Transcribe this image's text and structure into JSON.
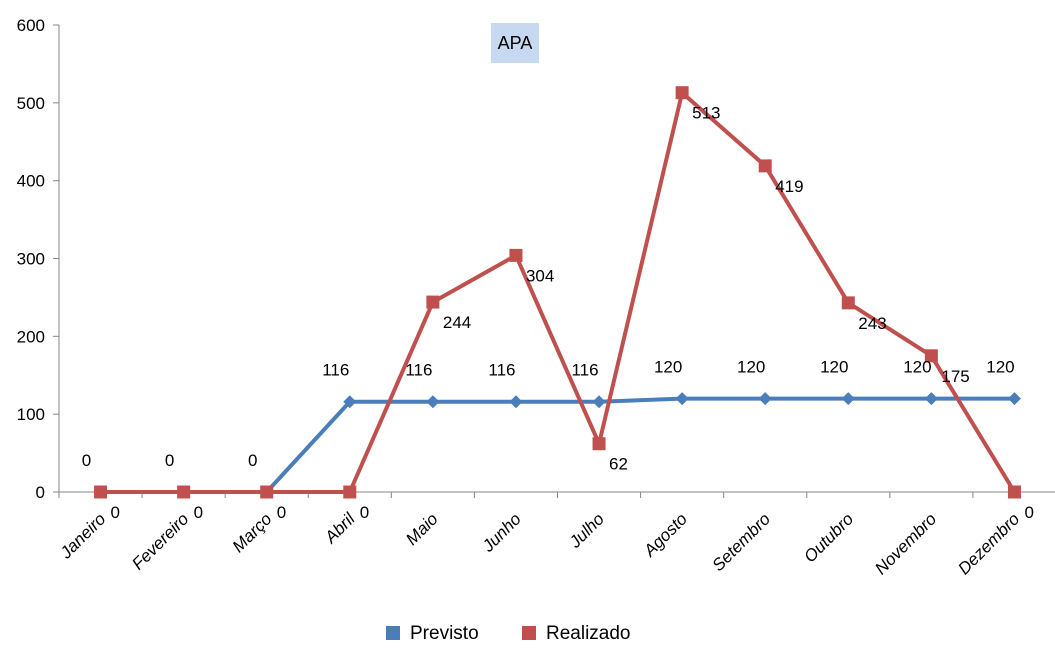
{
  "chart_data": {
    "type": "line",
    "title": "APA",
    "xlabel": "",
    "ylabel": "",
    "categories": [
      "Janeiro",
      "Fevereiro",
      "Março",
      "Abril",
      "Maio",
      "Junho",
      "Julho",
      "Agosto",
      "Setembro",
      "Outubro",
      "Novembro",
      "Dezembro"
    ],
    "ylim": [
      0,
      600
    ],
    "yticks": [
      0,
      100,
      200,
      300,
      400,
      500,
      600
    ],
    "grid": false,
    "legend_position": "bottom",
    "series": [
      {
        "name": "Previsto",
        "color": "#4a7ebb",
        "marker": "diamond",
        "values": [
          0,
          0,
          0,
          116,
          116,
          116,
          116,
          120,
          120,
          120,
          120,
          120
        ]
      },
      {
        "name": "Realizado",
        "color": "#c0504d",
        "marker": "square",
        "values": [
          0,
          0,
          0,
          0,
          244,
          304,
          62,
          513,
          419,
          243,
          175,
          0
        ]
      }
    ]
  }
}
